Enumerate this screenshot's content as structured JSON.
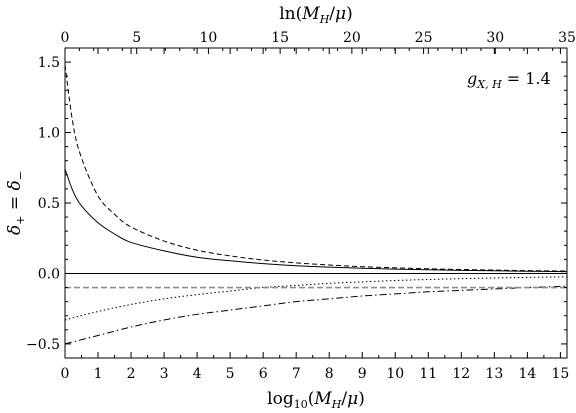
{
  "chart_data": {
    "type": "line",
    "title": "",
    "annotation": "g_{X,H} = 1.4",
    "xlabel": "log10(M_H/μ)",
    "x2label": "ln(M_H/μ)",
    "ylabel": "δ+ = δ−",
    "xlim": [
      0,
      15.2
    ],
    "ylim": [
      -0.6,
      1.6
    ],
    "x_ticks": [
      "0",
      "1",
      "2",
      "3",
      "4",
      "5",
      "6",
      "7",
      "8",
      "9",
      "10",
      "11",
      "12",
      "13",
      "14",
      "15"
    ],
    "x2_ticks": [
      "0",
      "5",
      "10",
      "15",
      "20",
      "25",
      "30",
      "35"
    ],
    "y_ticks": [
      "-0.5",
      "0.0",
      "0.5",
      "1.0",
      "1.5"
    ],
    "grid": false,
    "series": [
      {
        "style": "solid",
        "color": "#000000",
        "x": [
          0,
          0.25,
          0.5,
          1,
          1.5,
          2,
          3,
          4,
          5,
          6,
          7,
          8,
          9,
          10,
          11,
          12,
          13,
          14,
          15.2
        ],
        "y": [
          0.74,
          0.58,
          0.48,
          0.36,
          0.28,
          0.22,
          0.16,
          0.115,
          0.09,
          0.07,
          0.055,
          0.045,
          0.037,
          0.031,
          0.026,
          0.022,
          0.019,
          0.016,
          0.013
        ]
      },
      {
        "style": "dashed",
        "color": "#000000",
        "x": [
          0,
          0.25,
          0.5,
          1,
          1.5,
          2,
          3,
          4,
          5,
          6,
          7,
          8,
          9,
          10,
          11,
          12,
          13,
          14,
          15.2
        ],
        "y": [
          1.48,
          1.05,
          0.82,
          0.55,
          0.42,
          0.33,
          0.23,
          0.165,
          0.125,
          0.095,
          0.075,
          0.06,
          0.048,
          0.04,
          0.033,
          0.028,
          0.024,
          0.02,
          0.017
        ]
      },
      {
        "style": "dotted",
        "color": "#000000",
        "x": [
          0,
          1,
          2,
          3,
          4,
          5,
          6,
          7,
          8,
          9,
          10,
          11,
          12,
          13,
          14,
          15.2
        ],
        "y": [
          -0.33,
          -0.27,
          -0.22,
          -0.18,
          -0.15,
          -0.125,
          -0.1,
          -0.085,
          -0.07,
          -0.06,
          -0.05,
          -0.043,
          -0.037,
          -0.032,
          -0.028,
          -0.024
        ]
      },
      {
        "style": "dashdot",
        "color": "#000000",
        "x": [
          0,
          1,
          2,
          3,
          4,
          5,
          6,
          7,
          8,
          9,
          10,
          11,
          12,
          13,
          14,
          15.2
        ],
        "y": [
          -0.5,
          -0.44,
          -0.38,
          -0.33,
          -0.29,
          -0.26,
          -0.23,
          -0.2,
          -0.18,
          -0.16,
          -0.145,
          -0.13,
          -0.12,
          -0.11,
          -0.1,
          -0.09
        ]
      },
      {
        "style": "dashed",
        "color": "#8c8c8c",
        "x": [
          0,
          15.2
        ],
        "y": [
          -0.1,
          -0.1
        ]
      },
      {
        "style": "solid",
        "color": "#000000",
        "x": [
          0,
          15.2
        ],
        "y": [
          0,
          0
        ]
      }
    ]
  }
}
